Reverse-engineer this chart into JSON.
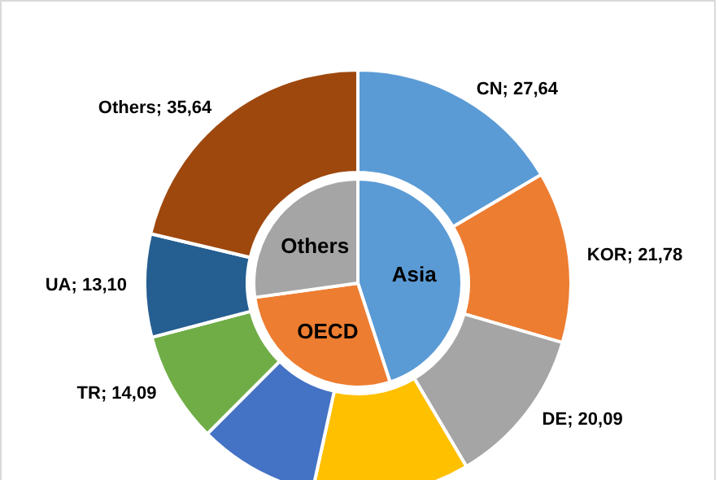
{
  "chart_data": [
    {
      "type": "pie",
      "legend": false,
      "categories": [
        "Asia",
        "OECD",
        "Others"
      ],
      "values": [
        45.0,
        27.8,
        27.2
      ],
      "colors": [
        "#5b9bd5",
        "#ed7d31",
        "#a5a5a5"
      ]
    },
    {
      "type": "donut",
      "legend": false,
      "categories": [
        "CN",
        "KOR",
        "DE",
        null,
        null,
        "TR",
        "UA",
        "Others"
      ],
      "values": [
        27.64,
        21.78,
        20.09,
        20.0,
        15.2,
        14.09,
        13.1,
        35.64
      ],
      "value_labels": [
        "27,64",
        "21,78",
        "20,09",
        null,
        null,
        "14,09",
        "13,10",
        "35,64"
      ],
      "colors": [
        "#5b9bd5",
        "#ed7d31",
        "#a5a5a5",
        "#ffc000",
        "#4472c4",
        "#70ad47",
        "#255e91",
        "#9e480e"
      ]
    }
  ]
}
